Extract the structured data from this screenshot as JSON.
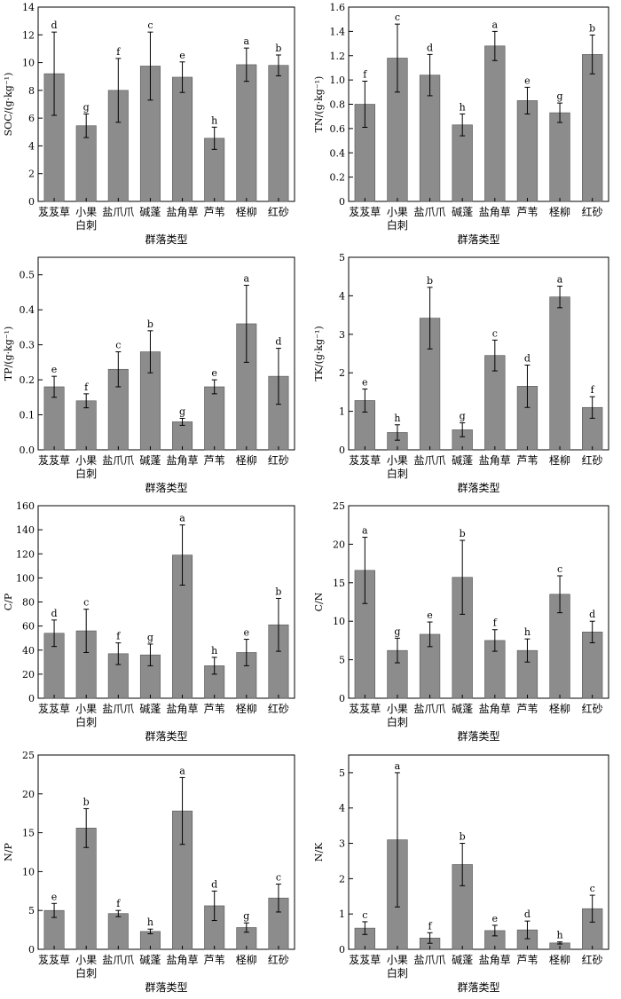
{
  "figure": {
    "xlabel": "群落类型",
    "categories": [
      [
        "芨芨草"
      ],
      [
        "小果",
        "白刺"
      ],
      [
        "盐爪爪"
      ],
      [
        "碱蓬"
      ],
      [
        "盐角草"
      ],
      [
        "芦苇"
      ],
      [
        "柽柳"
      ],
      [
        "红砂"
      ]
    ],
    "bar_color": "#8c8c8c",
    "axis_color": "#000000"
  },
  "chart_data": [
    {
      "type": "bar",
      "ylabel": "SOC/(g·kg⁻¹)",
      "ylim": [
        0,
        14
      ],
      "yticks": [
        0,
        2,
        4,
        6,
        8,
        10,
        12,
        14
      ],
      "ytick_labels": [
        "0",
        "2",
        "4",
        "6",
        "8",
        "10",
        "12",
        "14"
      ],
      "values": [
        9.2,
        5.45,
        8.0,
        9.75,
        8.95,
        4.55,
        9.85,
        9.8
      ],
      "errors": [
        3.0,
        0.85,
        2.3,
        2.45,
        1.1,
        0.8,
        1.2,
        0.75
      ],
      "letters": [
        "d",
        "g",
        "f",
        "c",
        "e",
        "h",
        "a",
        "b"
      ]
    },
    {
      "type": "bar",
      "ylabel": "TN/(g·kg⁻¹)",
      "ylim": [
        0,
        1.6
      ],
      "yticks": [
        0,
        0.2,
        0.4,
        0.6,
        0.8,
        1.0,
        1.2,
        1.4,
        1.6
      ],
      "ytick_labels": [
        "0",
        "0.2",
        "0.4",
        "0.6",
        "0.8",
        "1.0",
        "1.2",
        "1.4",
        "1.6"
      ],
      "values": [
        0.8,
        1.18,
        1.04,
        0.63,
        1.28,
        0.83,
        0.73,
        1.21
      ],
      "errors": [
        0.19,
        0.28,
        0.17,
        0.09,
        0.12,
        0.11,
        0.08,
        0.16
      ],
      "letters": [
        "f",
        "c",
        "d",
        "h",
        "a",
        "e",
        "g",
        "b"
      ]
    },
    {
      "type": "bar",
      "ylabel": "TP/(g·kg⁻¹)",
      "ylim": [
        0,
        0.55
      ],
      "yticks": [
        0,
        0.1,
        0.2,
        0.3,
        0.4,
        0.5
      ],
      "ytick_labels": [
        "0.0",
        "0.1",
        "0.2",
        "0.3",
        "0.4",
        "0.5"
      ],
      "values": [
        0.18,
        0.14,
        0.23,
        0.28,
        0.08,
        0.18,
        0.36,
        0.21
      ],
      "errors": [
        0.03,
        0.02,
        0.05,
        0.06,
        0.01,
        0.02,
        0.11,
        0.08
      ],
      "letters": [
        "e",
        "f",
        "c",
        "b",
        "g",
        "e",
        "a",
        "d"
      ]
    },
    {
      "type": "bar",
      "ylabel": "TK/(g·kg⁻¹)",
      "ylim": [
        0,
        5
      ],
      "yticks": [
        0,
        1,
        2,
        3,
        4,
        5
      ],
      "ytick_labels": [
        "0",
        "1",
        "2",
        "3",
        "4",
        "5"
      ],
      "values": [
        1.28,
        0.45,
        3.42,
        0.52,
        2.45,
        1.65,
        3.97,
        1.1
      ],
      "errors": [
        0.3,
        0.2,
        0.8,
        0.18,
        0.4,
        0.55,
        0.28,
        0.28
      ],
      "letters": [
        "e",
        "h",
        "b",
        "g",
        "c",
        "d",
        "a",
        "f"
      ]
    },
    {
      "type": "bar",
      "ylabel": "C/P",
      "ylim": [
        0,
        160
      ],
      "yticks": [
        0,
        20,
        40,
        60,
        80,
        100,
        120,
        140,
        160
      ],
      "ytick_labels": [
        "0",
        "20",
        "40",
        "60",
        "80",
        "100",
        "120",
        "140",
        "160"
      ],
      "values": [
        54,
        56,
        37,
        36,
        119,
        27,
        38,
        61
      ],
      "errors": [
        11,
        18,
        9,
        9,
        25,
        7,
        11,
        22
      ],
      "letters": [
        "d",
        "c",
        "f",
        "g",
        "a",
        "h",
        "e",
        "b"
      ]
    },
    {
      "type": "bar",
      "ylabel": "C/N",
      "ylim": [
        0,
        25
      ],
      "yticks": [
        0,
        5,
        10,
        15,
        20,
        25
      ],
      "ytick_labels": [
        "0",
        "5",
        "10",
        "15",
        "20",
        "25"
      ],
      "values": [
        16.6,
        6.2,
        8.3,
        15.7,
        7.5,
        6.2,
        13.5,
        8.6
      ],
      "errors": [
        4.3,
        1.6,
        1.6,
        4.8,
        1.4,
        1.5,
        2.4,
        1.4
      ],
      "letters": [
        "a",
        "g",
        "e",
        "b",
        "f",
        "h",
        "c",
        "d"
      ]
    },
    {
      "type": "bar",
      "ylabel": "N/P",
      "ylim": [
        0,
        25
      ],
      "yticks": [
        0,
        5,
        10,
        15,
        20,
        25
      ],
      "ytick_labels": [
        "0",
        "5",
        "10",
        "15",
        "20",
        "25"
      ],
      "values": [
        5.0,
        15.6,
        4.6,
        2.3,
        17.8,
        5.6,
        2.8,
        6.6
      ],
      "errors": [
        0.9,
        2.5,
        0.4,
        0.3,
        4.3,
        1.9,
        0.6,
        1.8
      ],
      "letters": [
        "e",
        "b",
        "f",
        "h",
        "a",
        "d",
        "g",
        "c"
      ]
    },
    {
      "type": "bar",
      "ylabel": "N/K",
      "ylim": [
        0,
        5.5
      ],
      "yticks": [
        0,
        1,
        2,
        3,
        4,
        5
      ],
      "ytick_labels": [
        "0",
        "1",
        "2",
        "3",
        "4",
        "5"
      ],
      "values": [
        0.6,
        3.1,
        0.32,
        2.4,
        0.53,
        0.55,
        0.18,
        1.15
      ],
      "errors": [
        0.18,
        1.9,
        0.15,
        0.6,
        0.15,
        0.25,
        0.03,
        0.38
      ],
      "letters": [
        "c",
        "a",
        "f",
        "b",
        "e",
        "d",
        "h",
        "c"
      ]
    }
  ]
}
